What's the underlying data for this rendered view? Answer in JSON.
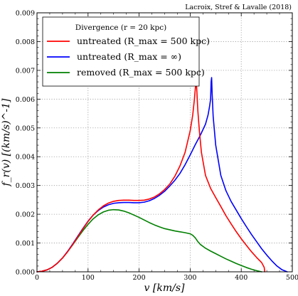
{
  "chart_data": {
    "type": "line",
    "credit": "Lacroix, Stref & Lavalle (2018)",
    "xlabel": "v [km/s]",
    "ylabel": "f_r(v) [(km/s)^-1]",
    "xlim": [
      0,
      500
    ],
    "ylim": [
      0,
      0.009
    ],
    "x_ticks": [
      "0",
      "100",
      "200",
      "300",
      "400",
      "500"
    ],
    "y_ticks": [
      "0.000",
      "0.001",
      "0.002",
      "0.003",
      "0.004",
      "0.005",
      "0.006",
      "0.007",
      "0.008",
      "0.009"
    ],
    "grid": true,
    "legend": {
      "position": "top-left",
      "title": "Divergence (r = 20 kpc)",
      "entries": [
        {
          "label": "untreated (R_max = 500 kpc)",
          "color": "#ff0000"
        },
        {
          "label": "untreated (R_max = ∞)",
          "color": "#0000ff"
        },
        {
          "label": "removed (R_max = 500 kpc)",
          "color": "#008000"
        }
      ]
    },
    "series": [
      {
        "name": "untreated (R_max = 500 kpc)",
        "color": "#ff0000",
        "x": [
          0,
          10,
          20,
          30,
          40,
          50,
          60,
          70,
          80,
          90,
          100,
          110,
          120,
          130,
          140,
          150,
          160,
          170,
          180,
          190,
          200,
          210,
          220,
          230,
          240,
          250,
          260,
          270,
          280,
          290,
          300,
          305,
          308,
          310,
          311,
          312,
          313,
          315,
          318,
          322,
          330,
          340,
          350,
          360,
          370,
          380,
          390,
          400,
          410,
          420,
          430,
          440,
          445,
          446
        ],
        "y": [
          0.0,
          2e-05,
          7e-05,
          0.00016,
          0.0003,
          0.00048,
          0.0007,
          0.00095,
          0.00122,
          0.00149,
          0.00175,
          0.00197,
          0.00215,
          0.00229,
          0.00239,
          0.00245,
          0.00248,
          0.00249,
          0.00249,
          0.00248,
          0.00248,
          0.00249,
          0.00253,
          0.0026,
          0.00271,
          0.00286,
          0.00305,
          0.00332,
          0.00368,
          0.00415,
          0.0049,
          0.00545,
          0.00595,
          0.00635,
          0.00655,
          0.0066,
          0.0063,
          0.0056,
          0.0049,
          0.00415,
          0.00335,
          0.0029,
          0.00258,
          0.00227,
          0.00195,
          0.00167,
          0.0014,
          0.00115,
          0.00092,
          0.0007,
          0.0005,
          0.00032,
          0.00015,
          0.0
        ]
      },
      {
        "name": "untreated (R_max = ∞)",
        "color": "#0000ff",
        "x": [
          0,
          10,
          20,
          30,
          40,
          50,
          60,
          70,
          80,
          90,
          100,
          110,
          120,
          130,
          140,
          150,
          160,
          170,
          180,
          190,
          200,
          210,
          220,
          230,
          240,
          250,
          260,
          270,
          280,
          290,
          300,
          310,
          320,
          330,
          335,
          338,
          340,
          341,
          342,
          343,
          345,
          350,
          360,
          370,
          380,
          390,
          400,
          410,
          420,
          430,
          440,
          450,
          460,
          470,
          480,
          490
        ],
        "y": [
          0.0,
          2e-05,
          7e-05,
          0.00016,
          0.0003,
          0.00048,
          0.00071,
          0.00097,
          0.00124,
          0.00151,
          0.00176,
          0.00197,
          0.00213,
          0.00225,
          0.00233,
          0.00238,
          0.0024,
          0.00241,
          0.00241,
          0.0024,
          0.0024,
          0.00242,
          0.00247,
          0.00255,
          0.00266,
          0.0028,
          0.00298,
          0.00318,
          0.00342,
          0.00372,
          0.00406,
          0.00442,
          0.00475,
          0.00513,
          0.00545,
          0.00575,
          0.006,
          0.0066,
          0.00675,
          0.0062,
          0.0054,
          0.0044,
          0.00335,
          0.00282,
          0.00245,
          0.00215,
          0.00185,
          0.00157,
          0.0013,
          0.00105,
          0.0008,
          0.00058,
          0.00038,
          0.0002,
          7e-05,
          0.0
        ]
      },
      {
        "name": "removed (R_max = 500 kpc)",
        "color": "#008000",
        "x": [
          0,
          10,
          20,
          30,
          40,
          50,
          60,
          70,
          80,
          90,
          100,
          110,
          120,
          130,
          140,
          150,
          160,
          170,
          180,
          190,
          200,
          210,
          220,
          230,
          240,
          250,
          260,
          270,
          280,
          290,
          300,
          305,
          310,
          315,
          320,
          330,
          340,
          350,
          360,
          370,
          380,
          390,
          400,
          410,
          420,
          430,
          440
        ],
        "y": [
          0.0,
          2e-05,
          7e-05,
          0.00016,
          0.0003,
          0.00048,
          0.0007,
          0.00094,
          0.00119,
          0.00143,
          0.00165,
          0.00184,
          0.00198,
          0.00208,
          0.00214,
          0.00216,
          0.00215,
          0.00211,
          0.00205,
          0.00197,
          0.00189,
          0.0018,
          0.00171,
          0.00163,
          0.00156,
          0.0015,
          0.00146,
          0.00142,
          0.00139,
          0.00136,
          0.00132,
          0.00127,
          0.00118,
          0.00105,
          0.00095,
          0.00082,
          0.00072,
          0.00063,
          0.00054,
          0.00045,
          0.00037,
          0.00029,
          0.00022,
          0.00015,
          9e-05,
          4e-05,
          0.0
        ]
      }
    ]
  }
}
